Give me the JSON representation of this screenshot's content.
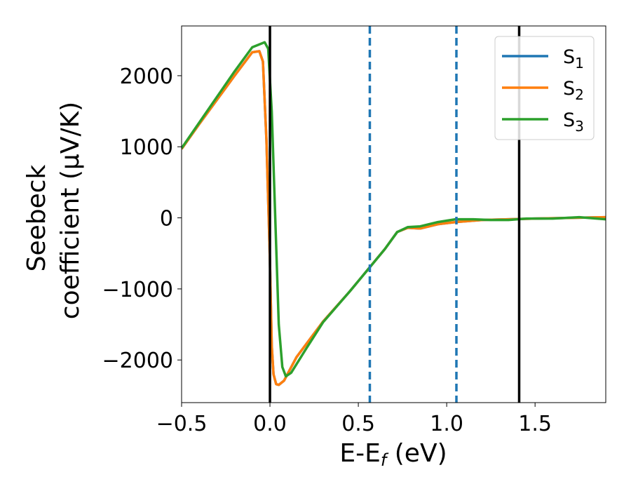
{
  "chart_data": {
    "type": "line",
    "title": "",
    "xlabel": {
      "base": "E-E",
      "sub": "f",
      "rest": " (eV)"
    },
    "ylabel": {
      "line1": "Seebeck",
      "line2": "coefficient  (μV/K)"
    },
    "xlim": [
      -0.5,
      1.9
    ],
    "ylim": [
      -2600,
      2700
    ],
    "xticks": [
      {
        "value": -0.5,
        "label": "−0.5"
      },
      {
        "value": 0.0,
        "label": "0.0"
      },
      {
        "value": 0.5,
        "label": "0.5"
      },
      {
        "value": 1.0,
        "label": "1.0"
      },
      {
        "value": 1.5,
        "label": "1.5"
      }
    ],
    "yticks": [
      {
        "value": 2000,
        "label": "2000"
      },
      {
        "value": 1000,
        "label": "1000"
      },
      {
        "value": 0,
        "label": "0"
      },
      {
        "value": -1000,
        "label": "−1000"
      },
      {
        "value": -2000,
        "label": "−2000"
      }
    ],
    "legend_position": "top-right",
    "grid": false,
    "vlines": [
      {
        "x": 0.0,
        "style": "solid",
        "color": "#000000"
      },
      {
        "x": 1.41,
        "style": "solid",
        "color": "#000000"
      },
      {
        "x": 0.565,
        "style": "dashed",
        "color": "#1f77b4"
      },
      {
        "x": 1.055,
        "style": "dashed",
        "color": "#1f77b4"
      }
    ],
    "series": [
      {
        "name": "S",
        "sub": "1",
        "color": "#1f77b4",
        "points": [
          [
            -0.5,
            970
          ],
          [
            -0.4,
            1320
          ],
          [
            -0.3,
            1660
          ],
          [
            -0.2,
            2000
          ],
          [
            -0.1,
            2330
          ],
          [
            -0.06,
            2345
          ],
          [
            -0.04,
            2200
          ],
          [
            -0.02,
            1100
          ],
          [
            0.0,
            -600
          ],
          [
            0.01,
            -1800
          ],
          [
            0.02,
            -2200
          ],
          [
            0.035,
            -2340
          ],
          [
            0.05,
            -2350
          ],
          [
            0.08,
            -2290
          ],
          [
            0.15,
            -1960
          ],
          [
            0.3,
            -1460
          ],
          [
            0.45,
            -1040
          ],
          [
            0.55,
            -740
          ],
          [
            0.65,
            -440
          ],
          [
            0.72,
            -200
          ],
          [
            0.78,
            -140
          ],
          [
            0.85,
            -150
          ],
          [
            0.95,
            -90
          ],
          [
            1.05,
            -60
          ],
          [
            1.2,
            -30
          ],
          [
            1.35,
            -20
          ],
          [
            1.5,
            -10
          ],
          [
            1.7,
            0
          ],
          [
            1.9,
            10
          ]
        ]
      },
      {
        "name": "S",
        "sub": "2",
        "color": "#ff7f0e",
        "points": [
          [
            -0.5,
            970
          ],
          [
            -0.4,
            1320
          ],
          [
            -0.3,
            1660
          ],
          [
            -0.2,
            2000
          ],
          [
            -0.1,
            2330
          ],
          [
            -0.06,
            2345
          ],
          [
            -0.04,
            2200
          ],
          [
            -0.02,
            1100
          ],
          [
            0.0,
            -600
          ],
          [
            0.01,
            -1800
          ],
          [
            0.02,
            -2200
          ],
          [
            0.035,
            -2340
          ],
          [
            0.05,
            -2350
          ],
          [
            0.08,
            -2290
          ],
          [
            0.15,
            -1960
          ],
          [
            0.3,
            -1460
          ],
          [
            0.45,
            -1040
          ],
          [
            0.55,
            -740
          ],
          [
            0.65,
            -440
          ],
          [
            0.72,
            -200
          ],
          [
            0.78,
            -140
          ],
          [
            0.85,
            -150
          ],
          [
            0.95,
            -90
          ],
          [
            1.05,
            -60
          ],
          [
            1.2,
            -30
          ],
          [
            1.35,
            -20
          ],
          [
            1.5,
            -10
          ],
          [
            1.7,
            0
          ],
          [
            1.9,
            10
          ]
        ]
      },
      {
        "name": "S",
        "sub": "3",
        "color": "#2ca02c",
        "points": [
          [
            -0.5,
            980
          ],
          [
            -0.4,
            1340
          ],
          [
            -0.3,
            1700
          ],
          [
            -0.2,
            2060
          ],
          [
            -0.1,
            2400
          ],
          [
            -0.03,
            2470
          ],
          [
            -0.01,
            2380
          ],
          [
            0.01,
            1500
          ],
          [
            0.03,
            0
          ],
          [
            0.05,
            -1500
          ],
          [
            0.07,
            -2100
          ],
          [
            0.09,
            -2230
          ],
          [
            0.12,
            -2180
          ],
          [
            0.2,
            -1860
          ],
          [
            0.3,
            -1470
          ],
          [
            0.45,
            -1040
          ],
          [
            0.55,
            -740
          ],
          [
            0.65,
            -440
          ],
          [
            0.72,
            -200
          ],
          [
            0.78,
            -130
          ],
          [
            0.85,
            -120
          ],
          [
            0.95,
            -60
          ],
          [
            1.05,
            -20
          ],
          [
            1.15,
            -20
          ],
          [
            1.25,
            -30
          ],
          [
            1.35,
            -30
          ],
          [
            1.45,
            -10
          ],
          [
            1.6,
            -10
          ],
          [
            1.75,
            10
          ],
          [
            1.9,
            -20
          ]
        ]
      }
    ]
  }
}
